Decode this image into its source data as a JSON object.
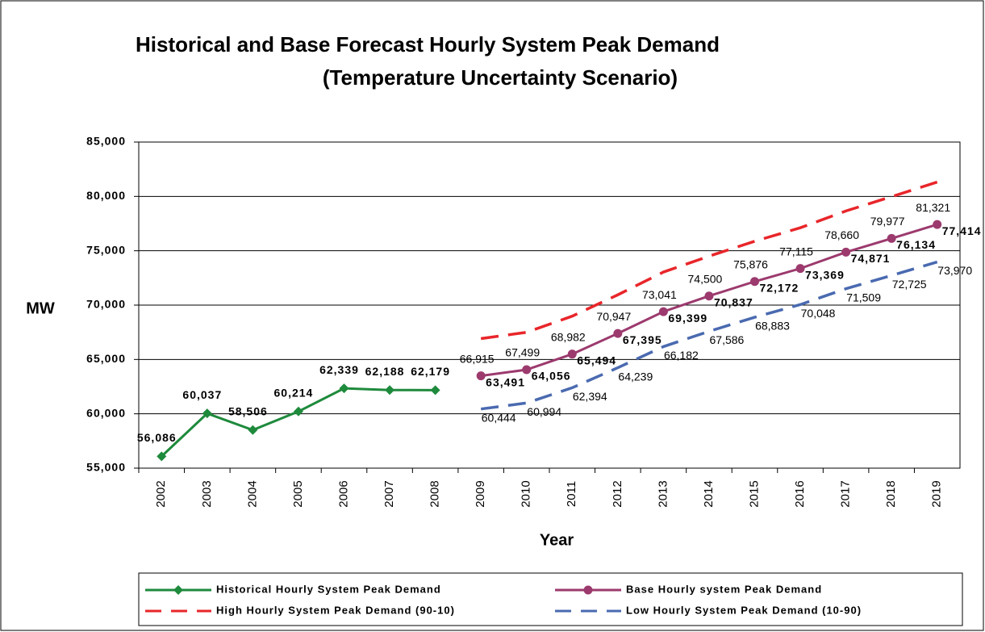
{
  "chart_data": {
    "type": "line",
    "title": "Historical and Base Forecast Hourly System Peak Demand",
    "subtitle": "(Temperature Uncertainty Scenario)",
    "y_label": "MW",
    "x_label": "Year",
    "categories": [
      "2002",
      "2003",
      "2004",
      "2005",
      "2006",
      "2007",
      "2008",
      "2009",
      "2010",
      "2011",
      "2012",
      "2013",
      "2014",
      "2015",
      "2016",
      "2017",
      "2018",
      "2019"
    ],
    "ylim": [
      55000,
      85000
    ],
    "yticks": [
      {
        "value": 55000,
        "label": "55,000"
      },
      {
        "value": 60000,
        "label": "60,000"
      },
      {
        "value": 65000,
        "label": "65,000"
      },
      {
        "value": 70000,
        "label": "70,000"
      },
      {
        "value": 75000,
        "label": "75,000"
      },
      {
        "value": 80000,
        "label": "80,000"
      },
      {
        "value": 85000,
        "label": "85,000"
      }
    ],
    "grid": true,
    "series": [
      {
        "name": "Historical Hourly System Peak Demand",
        "color": "#1e8a3c",
        "marker": "diamond",
        "dashed": false,
        "label_style": "hist",
        "values": [
          56086,
          60037,
          58506,
          60214,
          62339,
          62188,
          62179,
          null,
          null,
          null,
          null,
          null,
          null,
          null,
          null,
          null,
          null,
          null
        ],
        "value_labels": [
          "56,086",
          "60,037",
          "58,506",
          "60,214",
          "62,339",
          "62,188",
          "62,179",
          null,
          null,
          null,
          null,
          null,
          null,
          null,
          null,
          null,
          null,
          null
        ]
      },
      {
        "name": "Base Hourly system Peak Demand",
        "color": "#9c3a6e",
        "marker": "circle",
        "dashed": false,
        "label_style": "base",
        "values": [
          null,
          null,
          null,
          null,
          null,
          null,
          null,
          63491,
          64056,
          65494,
          67395,
          69399,
          70837,
          72172,
          73369,
          74871,
          76134,
          77414
        ],
        "value_labels": [
          null,
          null,
          null,
          null,
          null,
          null,
          null,
          "63,491",
          "64,056",
          "65,494",
          "67,395",
          "69,399",
          "70,837",
          "72,172",
          "73,369",
          "74,871",
          "76,134",
          "77,414"
        ]
      },
      {
        "name": "High Hourly System Peak Demand (90-10)",
        "color": "#e8262a",
        "marker": "none",
        "dashed": true,
        "label_style": "high",
        "values": [
          null,
          null,
          null,
          null,
          null,
          null,
          null,
          66915,
          67499,
          68982,
          70947,
          73041,
          74500,
          75876,
          77115,
          78660,
          79977,
          81321
        ],
        "value_labels": [
          null,
          null,
          null,
          null,
          null,
          null,
          null,
          "66,915",
          "67,499",
          "68,982",
          "70,947",
          "73,041",
          "74,500",
          "75,876",
          "77,115",
          "78,660",
          "79,977",
          "81,321"
        ]
      },
      {
        "name": "Low Hourly System Peak Demand (10-90)",
        "color": "#4a6ab0",
        "marker": "none",
        "dashed": true,
        "label_style": "low",
        "values": [
          null,
          null,
          null,
          null,
          null,
          null,
          null,
          60444,
          60994,
          62394,
          64239,
          66182,
          67586,
          68883,
          70048,
          71509,
          72725,
          73970
        ],
        "value_labels": [
          null,
          null,
          null,
          null,
          null,
          null,
          null,
          "60,444",
          "60,994",
          "62,394",
          "64,239",
          "66,182",
          "67,586",
          "68,883",
          "70,048",
          "71,509",
          "72,725",
          "73,970"
        ]
      }
    ]
  }
}
